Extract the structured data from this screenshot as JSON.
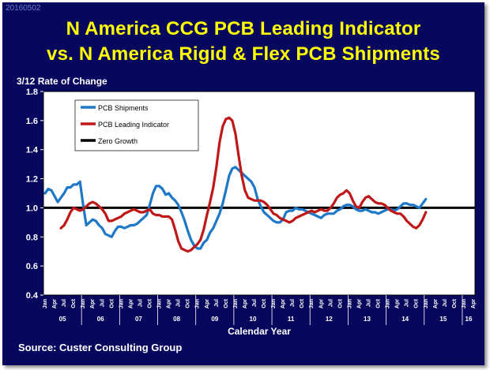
{
  "stamp": "20160502",
  "source": "Source: Custer Consulting Group",
  "chart_data": {
    "type": "line",
    "title": "N America CCG PCB Leading Indicator",
    "title_line2": "vs. N America Rigid & Flex PCB Shipments",
    "subtitle": "3/12 Rate of Change",
    "xlabel": "Calendar Year",
    "ylabel": "",
    "ylim": [
      0.4,
      1.8
    ],
    "yticks": [
      "0.4",
      "0.6",
      "0.8",
      "1.0",
      "1.2",
      "1.4",
      "1.6",
      "1.8"
    ],
    "month_ticks": [
      "Jan",
      "Apr",
      "Jul",
      "Oct"
    ],
    "year_labels": [
      "05",
      "06",
      "07",
      "08",
      "09",
      "10",
      "11",
      "12",
      "13",
      "14",
      "15",
      "16"
    ],
    "reference_line": {
      "name": "Zero Growth",
      "value": 1.0
    },
    "series": [
      {
        "name": "PCB Shipments",
        "color": "#1e78c8",
        "points": [
          [
            0,
            1.1
          ],
          [
            1,
            1.13
          ],
          [
            2,
            1.12
          ],
          [
            3,
            1.08
          ],
          [
            4,
            1.04
          ],
          [
            5,
            1.07
          ],
          [
            6,
            1.1
          ],
          [
            7,
            1.14
          ],
          [
            8,
            1.14
          ],
          [
            9,
            1.16
          ],
          [
            10,
            1.16
          ],
          [
            11,
            1.18
          ],
          [
            12,
            1.02
          ],
          [
            13,
            0.88
          ],
          [
            14,
            0.9
          ],
          [
            15,
            0.92
          ],
          [
            16,
            0.91
          ],
          [
            17,
            0.88
          ],
          [
            18,
            0.86
          ],
          [
            19,
            0.82
          ],
          [
            20,
            0.81
          ],
          [
            21,
            0.8
          ],
          [
            22,
            0.84
          ],
          [
            23,
            0.87
          ],
          [
            24,
            0.87
          ],
          [
            25,
            0.86
          ],
          [
            26,
            0.87
          ],
          [
            27,
            0.88
          ],
          [
            28,
            0.88
          ],
          [
            29,
            0.89
          ],
          [
            30,
            0.91
          ],
          [
            31,
            0.93
          ],
          [
            32,
            0.95
          ],
          [
            33,
            1.02
          ],
          [
            34,
            1.1
          ],
          [
            35,
            1.15
          ],
          [
            36,
            1.15
          ],
          [
            37,
            1.13
          ],
          [
            38,
            1.09
          ],
          [
            39,
            1.1
          ],
          [
            40,
            1.07
          ],
          [
            41,
            1.05
          ],
          [
            42,
            1.02
          ],
          [
            43,
            0.97
          ],
          [
            44,
            0.91
          ],
          [
            45,
            0.84
          ],
          [
            46,
            0.78
          ],
          [
            47,
            0.74
          ],
          [
            48,
            0.72
          ],
          [
            49,
            0.72
          ],
          [
            50,
            0.76
          ],
          [
            51,
            0.78
          ],
          [
            52,
            0.83
          ],
          [
            53,
            0.86
          ],
          [
            54,
            0.91
          ],
          [
            55,
            0.96
          ],
          [
            56,
            1.03
          ],
          [
            57,
            1.12
          ],
          [
            58,
            1.22
          ],
          [
            59,
            1.27
          ],
          [
            60,
            1.28
          ],
          [
            61,
            1.26
          ],
          [
            62,
            1.24
          ],
          [
            63,
            1.22
          ],
          [
            64,
            1.2
          ],
          [
            65,
            1.18
          ],
          [
            66,
            1.14
          ],
          [
            67,
            1.06
          ],
          [
            68,
            1.01
          ],
          [
            69,
            0.97
          ],
          [
            70,
            0.95
          ],
          [
            71,
            0.93
          ],
          [
            72,
            0.91
          ],
          [
            73,
            0.9
          ],
          [
            74,
            0.9
          ],
          [
            75,
            0.92
          ],
          [
            76,
            0.97
          ],
          [
            77,
            0.98
          ],
          [
            78,
            0.98
          ],
          [
            79,
            1.0
          ],
          [
            80,
            0.99
          ],
          [
            81,
            0.99
          ],
          [
            82,
            0.98
          ],
          [
            83,
            0.97
          ],
          [
            84,
            0.96
          ],
          [
            85,
            0.95
          ],
          [
            86,
            0.94
          ],
          [
            87,
            0.93
          ],
          [
            88,
            0.95
          ],
          [
            89,
            0.96
          ],
          [
            90,
            0.96
          ],
          [
            91,
            0.96
          ],
          [
            92,
            0.98
          ],
          [
            93,
            0.99
          ],
          [
            94,
            1.01
          ],
          [
            95,
            1.02
          ],
          [
            96,
            1.02
          ],
          [
            97,
            1.01
          ],
          [
            98,
            0.99
          ],
          [
            99,
            0.98
          ],
          [
            100,
            0.98
          ],
          [
            101,
            0.99
          ],
          [
            102,
            0.98
          ],
          [
            103,
            0.97
          ],
          [
            104,
            0.97
          ],
          [
            105,
            0.96
          ],
          [
            106,
            0.97
          ],
          [
            107,
            0.98
          ],
          [
            108,
            0.99
          ],
          [
            109,
            0.99
          ],
          [
            110,
            0.98
          ],
          [
            111,
            0.99
          ],
          [
            112,
            1.01
          ],
          [
            113,
            1.03
          ],
          [
            114,
            1.03
          ],
          [
            115,
            1.02
          ],
          [
            116,
            1.02
          ],
          [
            117,
            1.01
          ],
          [
            118,
            1.0
          ],
          [
            119,
            1.03
          ],
          [
            120,
            1.06
          ]
        ]
      },
      {
        "name": "PCB Leading Indicator",
        "color": "#c01818",
        "points": [
          [
            5,
            0.86
          ],
          [
            6,
            0.88
          ],
          [
            7,
            0.92
          ],
          [
            8,
            0.97
          ],
          [
            9,
            1.0
          ],
          [
            10,
            0.99
          ],
          [
            11,
            0.98
          ],
          [
            12,
            0.99
          ],
          [
            13,
            1.01
          ],
          [
            14,
            1.03
          ],
          [
            15,
            1.04
          ],
          [
            16,
            1.03
          ],
          [
            17,
            1.01
          ],
          [
            18,
            0.99
          ],
          [
            19,
            0.96
          ],
          [
            20,
            0.91
          ],
          [
            21,
            0.91
          ],
          [
            22,
            0.92
          ],
          [
            23,
            0.93
          ],
          [
            24,
            0.94
          ],
          [
            25,
            0.96
          ],
          [
            26,
            0.97
          ],
          [
            27,
            0.98
          ],
          [
            28,
            0.99
          ],
          [
            29,
            0.98
          ],
          [
            30,
            0.97
          ],
          [
            31,
            0.97
          ],
          [
            32,
            0.98
          ],
          [
            33,
            0.99
          ],
          [
            34,
            0.96
          ],
          [
            35,
            0.95
          ],
          [
            36,
            0.95
          ],
          [
            37,
            0.94
          ],
          [
            38,
            0.94
          ],
          [
            39,
            0.94
          ],
          [
            40,
            0.92
          ],
          [
            41,
            0.85
          ],
          [
            42,
            0.77
          ],
          [
            43,
            0.72
          ],
          [
            44,
            0.71
          ],
          [
            45,
            0.7
          ],
          [
            46,
            0.71
          ],
          [
            47,
            0.73
          ],
          [
            48,
            0.75
          ],
          [
            49,
            0.78
          ],
          [
            50,
            0.85
          ],
          [
            51,
            0.95
          ],
          [
            52,
            1.04
          ],
          [
            53,
            1.14
          ],
          [
            54,
            1.28
          ],
          [
            55,
            1.45
          ],
          [
            56,
            1.56
          ],
          [
            57,
            1.61
          ],
          [
            58,
            1.62
          ],
          [
            59,
            1.6
          ],
          [
            60,
            1.51
          ],
          [
            61,
            1.36
          ],
          [
            62,
            1.22
          ],
          [
            63,
            1.12
          ],
          [
            64,
            1.07
          ],
          [
            65,
            1.06
          ],
          [
            66,
            1.05
          ],
          [
            67,
            1.05
          ],
          [
            68,
            1.05
          ],
          [
            69,
            1.04
          ],
          [
            70,
            1.02
          ],
          [
            71,
            0.99
          ],
          [
            72,
            0.96
          ],
          [
            73,
            0.95
          ],
          [
            74,
            0.93
          ],
          [
            75,
            0.92
          ],
          [
            76,
            0.91
          ],
          [
            77,
            0.9
          ],
          [
            78,
            0.91
          ],
          [
            79,
            0.93
          ],
          [
            80,
            0.94
          ],
          [
            81,
            0.95
          ],
          [
            82,
            0.96
          ],
          [
            83,
            0.97
          ],
          [
            84,
            0.98
          ],
          [
            85,
            0.97
          ],
          [
            86,
            0.98
          ],
          [
            87,
            0.99
          ],
          [
            88,
            0.98
          ],
          [
            89,
            0.98
          ],
          [
            90,
            1.0
          ],
          [
            91,
            1.03
          ],
          [
            92,
            1.07
          ],
          [
            93,
            1.09
          ],
          [
            94,
            1.1
          ],
          [
            95,
            1.12
          ],
          [
            96,
            1.1
          ],
          [
            97,
            1.05
          ],
          [
            98,
            1.01
          ],
          [
            99,
            1.0
          ],
          [
            100,
            1.04
          ],
          [
            101,
            1.07
          ],
          [
            102,
            1.08
          ],
          [
            103,
            1.06
          ],
          [
            104,
            1.04
          ],
          [
            105,
            1.03
          ],
          [
            106,
            1.03
          ],
          [
            107,
            1.02
          ],
          [
            108,
            1.0
          ],
          [
            109,
            0.98
          ],
          [
            110,
            0.97
          ],
          [
            111,
            0.96
          ],
          [
            112,
            0.96
          ],
          [
            113,
            0.94
          ],
          [
            114,
            0.91
          ],
          [
            115,
            0.89
          ],
          [
            116,
            0.87
          ],
          [
            117,
            0.86
          ],
          [
            118,
            0.88
          ],
          [
            119,
            0.92
          ],
          [
            120,
            0.97
          ]
        ]
      }
    ]
  }
}
